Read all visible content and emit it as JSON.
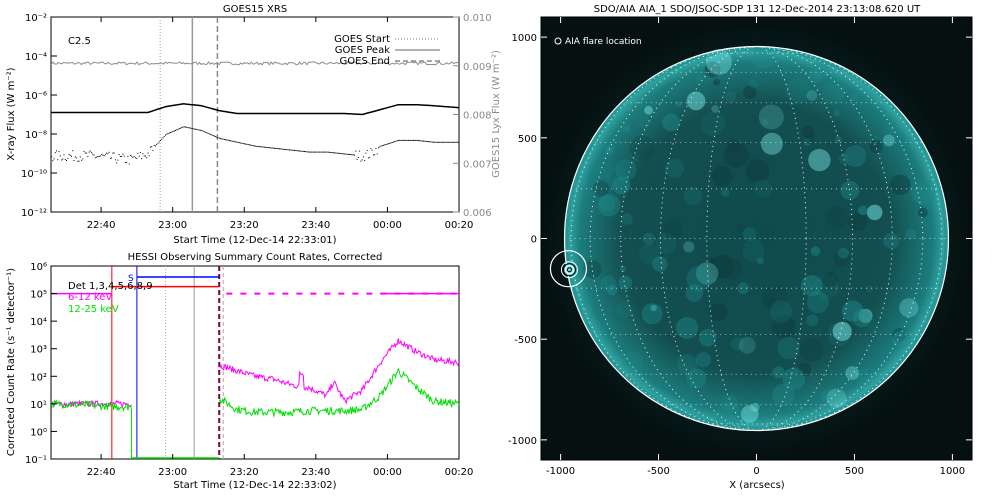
{
  "chart_data": [
    {
      "type": "line",
      "title": "GOES15 XRS",
      "xlabel": "Start Time (12-Dec-14 22:33:01)",
      "ylabel": "X-ray Flux (W m⁻²)",
      "y2label": "GOES15 Lyx Flux (W m⁻²)",
      "annotation": "C2.5",
      "x_ticks": [
        "22:40",
        "23:00",
        "23:20",
        "23:40",
        "00:00",
        "00:20"
      ],
      "x_range_min": [
        -7,
        107
      ],
      "y_scale": "log",
      "y_ticks": [
        "10⁻²",
        "10⁻⁴",
        "10⁻⁶",
        "10⁻⁸",
        "10⁻¹⁰",
        "10⁻¹²"
      ],
      "ylim_exp": [
        -12,
        -2
      ],
      "y2_ticks": [
        "0.010",
        "0.009",
        "0.008",
        "0.007",
        "0.006"
      ],
      "y2lim": [
        0.006,
        0.01
      ],
      "legend": [
        "GOES Start",
        "GOES Peak",
        "GOES End"
      ],
      "markers_min": {
        "start": 23.5,
        "peak": 32.5,
        "end": 39.5
      },
      "series": [
        {
          "color": "#000000",
          "x": [
            -7,
            5,
            10,
            15,
            20,
            25,
            30,
            35,
            40,
            45,
            50,
            55,
            60,
            65,
            70,
            75,
            80,
            85,
            90,
            95,
            100,
            107
          ],
          "y_exp": [
            -6.9,
            -6.9,
            -6.9,
            -6.9,
            -6.9,
            -6.6,
            -6.45,
            -6.55,
            -6.8,
            -6.95,
            -6.95,
            -6.95,
            -6.95,
            -6.95,
            -6.95,
            -6.95,
            -7.0,
            -6.75,
            -6.5,
            -6.5,
            -6.55,
            -6.65
          ]
        },
        {
          "color": "#000000",
          "style": "dotted",
          "x": [
            -7,
            5,
            10,
            15,
            20,
            22,
            25,
            30,
            35,
            40,
            45,
            50,
            55,
            60,
            65,
            70,
            75,
            80,
            82,
            85,
            90,
            95,
            100,
            107
          ],
          "y_exp": [
            -9.1,
            -9.1,
            -9.2,
            -9.3,
            -9.0,
            -8.6,
            -8.0,
            -7.6,
            -7.8,
            -8.2,
            -8.4,
            -8.6,
            -8.7,
            -8.8,
            -8.9,
            -8.9,
            -9.0,
            -9.1,
            -9.0,
            -8.6,
            -8.3,
            -8.3,
            -8.4,
            -8.4
          ]
        },
        {
          "color": "#8a8a8a",
          "x": [
            -7,
            107
          ],
          "y2": [
            0.00905,
            0.00905
          ]
        }
      ]
    },
    {
      "type": "line",
      "title": "HESSI Observing Summary Count Rates, Corrected",
      "xlabel": "Start Time (12-Dec-14 22:33:02)",
      "ylabel": "Corrected Count Rate (s⁻¹ detector⁻¹)",
      "x_ticks": [
        "22:40",
        "23:00",
        "23:20",
        "23:40",
        "00:00",
        "00:20"
      ],
      "x_range_min": [
        -7,
        107
      ],
      "y_scale": "log",
      "y_ticks": [
        "10⁶",
        "10⁵",
        "10⁴",
        "10³",
        "10²",
        "10¹",
        "10⁰",
        "10⁻¹"
      ],
      "ylim_exp": [
        -1,
        6
      ],
      "legend": [
        {
          "label": "Det 1,3,4,5,6,8,9",
          "color": "#000000"
        },
        {
          "label": "6-12 keV",
          "color": "#ff00ff"
        },
        {
          "label": "12-25 keV",
          "color": "#00e000"
        }
      ],
      "annotation": "S",
      "series": [
        {
          "name": "6-12 keV",
          "color": "#ff00ff",
          "x": [
            -7,
            5,
            10,
            15,
            20,
            25,
            30,
            35,
            40,
            45,
            50,
            55,
            60,
            63,
            65,
            70,
            72,
            75,
            80,
            85,
            90,
            95,
            100,
            107
          ],
          "y_exp": [
            1.0,
            1.0,
            1.0,
            1.0,
            1.0,
            1.0,
            1.0,
            1.0,
            2.4,
            2.2,
            2.0,
            1.9,
            1.7,
            1.6,
            1.6,
            1.3,
            1.8,
            1.1,
            1.5,
            2.5,
            3.3,
            2.9,
            2.6,
            2.5
          ]
        },
        {
          "name": "12-25 keV",
          "color": "#00e000",
          "x": [
            -7,
            5,
            10,
            15,
            40,
            45,
            50,
            55,
            60,
            65,
            70,
            75,
            80,
            85,
            90,
            95,
            100,
            107
          ],
          "y_exp": [
            1.0,
            0.95,
            0.9,
            0.9,
            1.2,
            0.8,
            0.7,
            0.7,
            0.7,
            0.75,
            0.75,
            0.75,
            0.8,
            1.3,
            2.2,
            1.6,
            1.1,
            1.0
          ]
        }
      ],
      "markers_min": {
        "red": 10,
        "blue": 17,
        "dotted": 25,
        "grey": 33,
        "dashed_purple": 40
      }
    },
    {
      "type": "heatmap",
      "title": "SDO/AIA AIA_1 SDO/JSOC-SDP 131 12-Dec-2014 23:13:08.620 UT",
      "annotation": "AIA flare location",
      "xlabel": "X (arcsecs)",
      "ylabel": "",
      "x_ticks": [
        "-1000",
        "-500",
        "0",
        "500",
        "1000"
      ],
      "y_ticks": [
        "1000",
        "500",
        "0",
        "-500",
        "-1000"
      ],
      "xlim": [
        -1100,
        1100
      ],
      "ylim": [
        -1100,
        1100
      ],
      "solar_radius_arcsec": 980,
      "flare_location_arcsec": [
        -960,
        -150
      ],
      "colormap": [
        "#020808",
        "#0d3a3c",
        "#1e8a8a",
        "#7ff0f0"
      ]
    }
  ]
}
